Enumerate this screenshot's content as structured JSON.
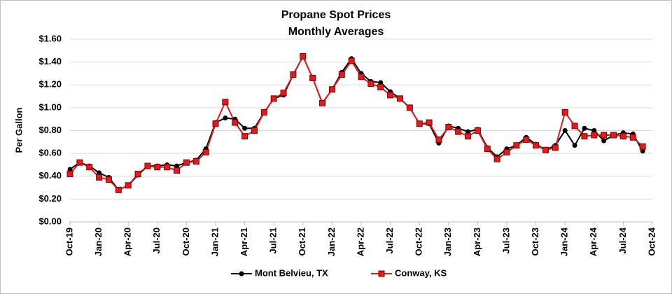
{
  "chart_data": {
    "type": "line",
    "title": "Propane Spot Prices",
    "subtitle": "Monthly Averages",
    "y_label": "Per Gallon",
    "categories": [
      "Oct-19",
      null,
      null,
      "Jan-20",
      null,
      null,
      "Apr-20",
      null,
      null,
      "Jul-20",
      null,
      null,
      "Oct-20",
      null,
      null,
      "Jan-21",
      null,
      null,
      "Apr-21",
      null,
      null,
      "Jul-21",
      null,
      null,
      "Oct-21",
      null,
      null,
      "Jan-22",
      null,
      null,
      "Apr-22",
      null,
      null,
      "Jul-22",
      null,
      null,
      "Oct-22",
      null,
      null,
      "Jan-23",
      null,
      null,
      "Apr-23",
      null,
      null,
      "Jul-23",
      null,
      null,
      "Oct-23",
      null,
      null,
      "Jan-24",
      null,
      null,
      "Apr-24",
      null,
      null,
      "Jul-24",
      null,
      null,
      "Oct-24"
    ],
    "series": [
      {
        "name": "Mont Belvieu, TX",
        "color": "#000000",
        "marker": "circle",
        "values": [
          0.46,
          0.52,
          0.49,
          0.43,
          0.39,
          0.28,
          0.32,
          0.41,
          0.49,
          0.49,
          0.5,
          0.49,
          0.52,
          0.54,
          0.64,
          0.87,
          0.91,
          0.9,
          0.82,
          0.82,
          0.96,
          1.08,
          1.11,
          1.29,
          1.45,
          1.26,
          1.04,
          1.16,
          1.31,
          1.43,
          1.3,
          1.23,
          1.22,
          1.14,
          1.08,
          1.0,
          0.86,
          0.86,
          0.69,
          0.84,
          0.82,
          0.79,
          0.81,
          0.65,
          0.57,
          0.64,
          0.67,
          0.74,
          0.68,
          0.63,
          0.67,
          0.8,
          0.67,
          0.82,
          0.8,
          0.71,
          0.76,
          0.78,
          0.77,
          0.62,
          null
        ]
      },
      {
        "name": "Conway, KS",
        "color": "#e31a1c",
        "marker": "square",
        "values": [
          0.42,
          0.52,
          0.48,
          0.39,
          0.37,
          0.28,
          0.32,
          0.42,
          0.49,
          0.48,
          0.48,
          0.45,
          0.52,
          0.53,
          0.61,
          0.86,
          1.05,
          0.87,
          0.75,
          0.8,
          0.96,
          1.08,
          1.13,
          1.29,
          1.45,
          1.26,
          1.04,
          1.16,
          1.29,
          1.41,
          1.27,
          1.21,
          1.18,
          1.11,
          1.08,
          1.0,
          0.86,
          0.87,
          0.72,
          0.83,
          0.79,
          0.75,
          0.8,
          0.64,
          0.55,
          0.61,
          0.67,
          0.72,
          0.67,
          0.63,
          0.65,
          0.96,
          0.84,
          0.75,
          0.76,
          0.76,
          0.76,
          0.75,
          0.74,
          0.66,
          null
        ]
      }
    ],
    "ylim": [
      0,
      1.6
    ],
    "yticks": [
      {
        "value": 0,
        "label": "$0.00"
      },
      {
        "value": 0.2,
        "label": "$0.20"
      },
      {
        "value": 0.4,
        "label": "$0.40"
      },
      {
        "value": 0.6,
        "label": "$0.60"
      },
      {
        "value": 0.8,
        "label": "$0.80"
      },
      {
        "value": 1.0,
        "label": "$1.00"
      },
      {
        "value": 1.2,
        "label": "$1.20"
      },
      {
        "value": 1.4,
        "label": "$1.40"
      },
      {
        "value": 1.6,
        "label": "$1.60"
      }
    ],
    "grid": true,
    "legend": "bottom"
  }
}
